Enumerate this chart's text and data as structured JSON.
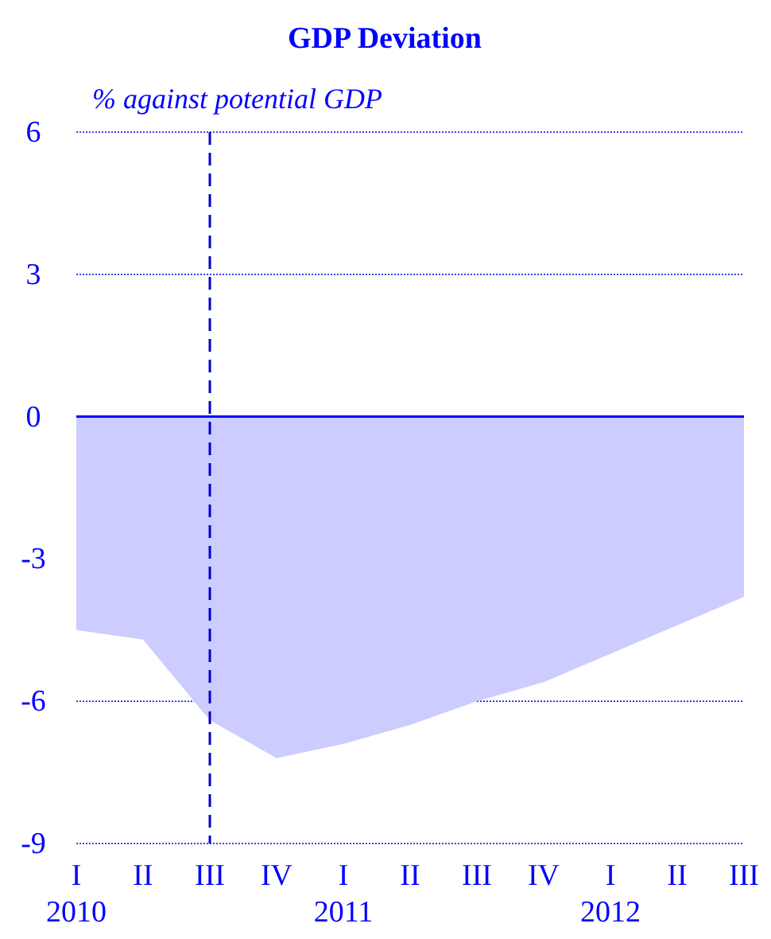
{
  "chart_data": {
    "type": "area",
    "title": "GDP Deviation",
    "ylabel": "% against potential GDP",
    "categories": [
      "I\n2010",
      "II",
      "III",
      "IV",
      "I\n2011",
      "II",
      "III",
      "IV",
      "I\n2012",
      "II",
      "III"
    ],
    "series": [
      {
        "color": "#ccccff",
        "values": [
          -4.5,
          -4.7,
          -6.4,
          -7.2,
          -6.9,
          -6.5,
          -6.0,
          -5.6,
          -5.0,
          -4.4,
          -3.8
        ]
      }
    ],
    "ylim": [
      -9,
      6
    ],
    "yticks": [
      -9,
      -6,
      -3,
      0,
      3,
      6
    ],
    "grid": "y",
    "ref_lines": [
      {
        "axis": "x",
        "value": "III",
        "color": "#0000cc",
        "line_style": "dashed"
      },
      {
        "axis": "y",
        "value": 0,
        "color": "#0000ff",
        "line_style": "solid"
      }
    ]
  }
}
